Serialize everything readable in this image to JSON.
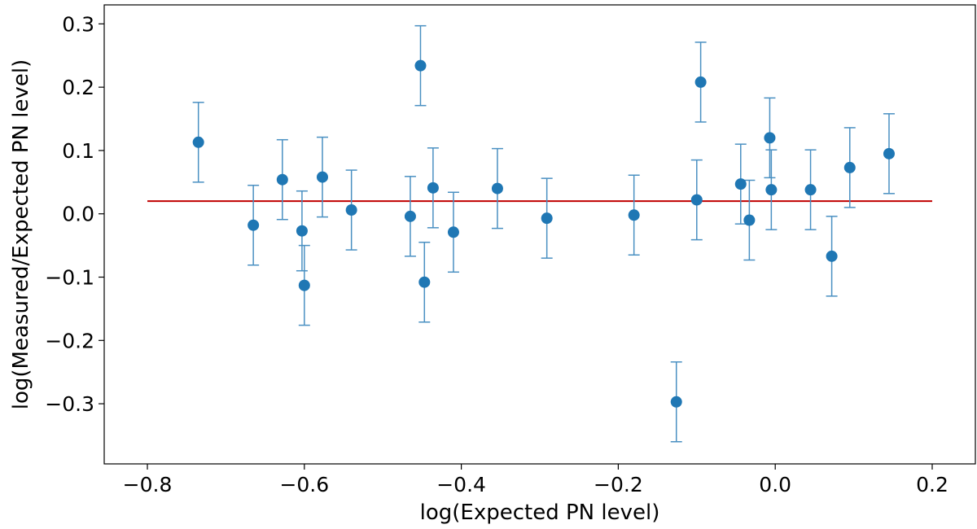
{
  "chart_data": {
    "type": "scatter",
    "title": "",
    "xlabel": "log(Expected PN level)",
    "ylabel": "log(Measured/Expected PN level)",
    "xlim": [
      -0.855,
      0.255
    ],
    "ylim": [
      -0.395,
      0.33
    ],
    "xticks": [
      -0.8,
      -0.6,
      -0.4,
      -0.2,
      0.0,
      0.2
    ],
    "xtick_labels": [
      "−0.8",
      "−0.6",
      "−0.4",
      "−0.2",
      "0.0",
      "0.2"
    ],
    "yticks": [
      -0.3,
      -0.2,
      -0.1,
      0.0,
      0.1,
      0.2,
      0.3
    ],
    "ytick_labels": [
      "−0.3",
      "−0.2",
      "−0.1",
      "0.0",
      "0.1",
      "0.2",
      "0.3"
    ],
    "grid": false,
    "colors": {
      "points": "#1f77b4",
      "errorbars": "#4a90c2",
      "reference_line": "#c00000"
    },
    "reference_line": {
      "x": [
        -0.8,
        0.2
      ],
      "y": [
        0.02,
        0.02
      ]
    },
    "series": [
      {
        "points": [
          {
            "x": -0.735,
            "y": 0.113,
            "err": 0.063
          },
          {
            "x": -0.665,
            "y": -0.018,
            "err": 0.063
          },
          {
            "x": -0.628,
            "y": 0.054,
            "err": 0.063
          },
          {
            "x": -0.603,
            "y": -0.027,
            "err": 0.063
          },
          {
            "x": -0.6,
            "y": -0.113,
            "err": 0.063
          },
          {
            "x": -0.577,
            "y": 0.058,
            "err": 0.063
          },
          {
            "x": -0.54,
            "y": 0.006,
            "err": 0.063
          },
          {
            "x": -0.465,
            "y": -0.004,
            "err": 0.063
          },
          {
            "x": -0.452,
            "y": 0.234,
            "err": 0.063
          },
          {
            "x": -0.447,
            "y": -0.108,
            "err": 0.063
          },
          {
            "x": -0.436,
            "y": 0.041,
            "err": 0.063
          },
          {
            "x": -0.41,
            "y": -0.029,
            "err": 0.063
          },
          {
            "x": -0.354,
            "y": 0.04,
            "err": 0.063
          },
          {
            "x": -0.291,
            "y": -0.007,
            "err": 0.063
          },
          {
            "x": -0.18,
            "y": -0.002,
            "err": 0.063
          },
          {
            "x": -0.126,
            "y": -0.297,
            "err": 0.063
          },
          {
            "x": -0.1,
            "y": 0.022,
            "err": 0.063
          },
          {
            "x": -0.095,
            "y": 0.208,
            "err": 0.063
          },
          {
            "x": -0.044,
            "y": 0.047,
            "err": 0.063
          },
          {
            "x": -0.033,
            "y": -0.01,
            "err": 0.063
          },
          {
            "x": -0.007,
            "y": 0.12,
            "err": 0.063
          },
          {
            "x": -0.005,
            "y": 0.038,
            "err": 0.063
          },
          {
            "x": 0.045,
            "y": 0.038,
            "err": 0.063
          },
          {
            "x": 0.072,
            "y": -0.067,
            "err": 0.063
          },
          {
            "x": 0.095,
            "y": 0.073,
            "err": 0.063
          },
          {
            "x": 0.145,
            "y": 0.095,
            "err": 0.063
          }
        ]
      }
    ]
  }
}
